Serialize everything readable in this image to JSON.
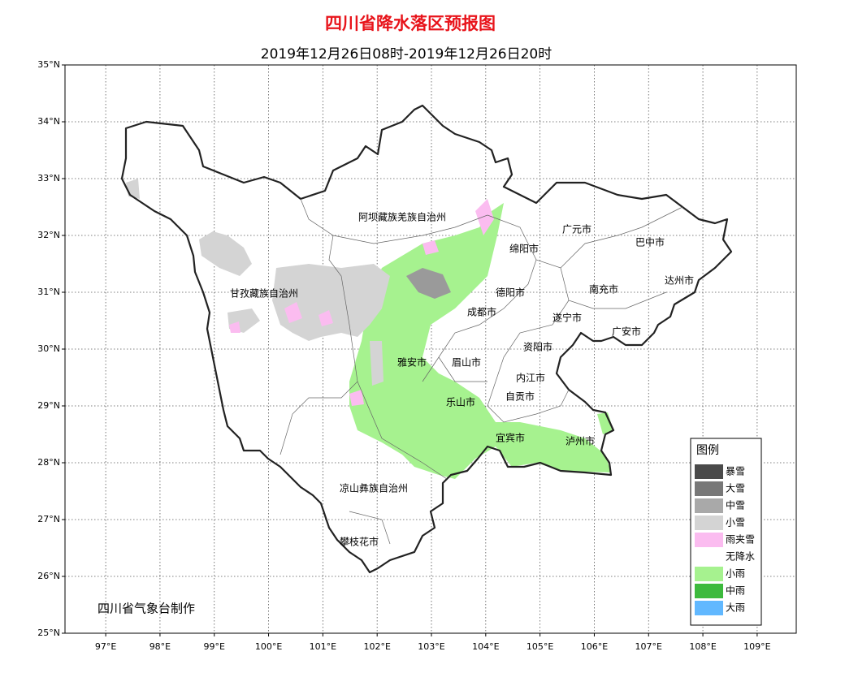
{
  "map": {
    "title": "四川省降水落区预报图",
    "subtitle": "2019年12月26日08时-2019年12月26日20时",
    "xlim": [
      96.25,
      109.72
    ],
    "ylim": [
      25,
      35
    ],
    "xticks": [
      {
        "value": 97,
        "label": "97°E"
      },
      {
        "value": 98,
        "label": "98°E"
      },
      {
        "value": 99,
        "label": "99°E"
      },
      {
        "value": 100,
        "label": "100°E"
      },
      {
        "value": 101,
        "label": "101°E"
      },
      {
        "value": 102,
        "label": "102°E"
      },
      {
        "value": 103,
        "label": "103°E"
      },
      {
        "value": 104,
        "label": "104°E"
      },
      {
        "value": 105,
        "label": "105°E"
      },
      {
        "value": 106,
        "label": "106°E"
      },
      {
        "value": 107,
        "label": "107°E"
      },
      {
        "value": 108,
        "label": "108°E"
      },
      {
        "value": 109,
        "label": "109°E"
      }
    ],
    "yticks": [
      {
        "value": 25,
        "label": "25°N"
      },
      {
        "value": 26,
        "label": "26°N"
      },
      {
        "value": 27,
        "label": "27°N"
      },
      {
        "value": 28,
        "label": "28°N"
      },
      {
        "value": 29,
        "label": "29°N"
      },
      {
        "value": 30,
        "label": "30°N"
      },
      {
        "value": 31,
        "label": "31°N"
      },
      {
        "value": 32,
        "label": "32°N"
      },
      {
        "value": 33,
        "label": "33°N"
      },
      {
        "value": 34,
        "label": "34°N"
      },
      {
        "value": 35,
        "label": "35°N"
      }
    ],
    "grid": true,
    "places": [
      "阿坝藏族羌族自治州",
      "甘孜藏族自治州",
      "绵阳市",
      "广元市",
      "巴中市",
      "达州市",
      "南充市",
      "德阳市",
      "成都市",
      "遂宁市",
      "广安市",
      "资阳市",
      "雅安市",
      "眉山市",
      "内江市",
      "自贡市",
      "乐山市",
      "宜宾市",
      "泸州市",
      "凉山彝族自治州",
      "攀枝花市"
    ],
    "legend": {
      "title": "图例",
      "items": [
        {
          "name": "暴雪",
          "color": "#4a4a4a"
        },
        {
          "name": "大雪",
          "color": "#787878"
        },
        {
          "name": "中雪",
          "color": "#a9a9a9"
        },
        {
          "name": "小雪",
          "color": "#d4d4d4"
        },
        {
          "name": "雨夹雪",
          "color": "#fbbcf0"
        },
        {
          "name": "无降水",
          "color": "#ffffff"
        },
        {
          "name": "小雨",
          "color": "#a6f28f"
        },
        {
          "name": "中雨",
          "color": "#3dba3d"
        },
        {
          "name": "大雨",
          "color": "#61b8ff"
        }
      ]
    },
    "credit": "四川省气象台制作"
  }
}
